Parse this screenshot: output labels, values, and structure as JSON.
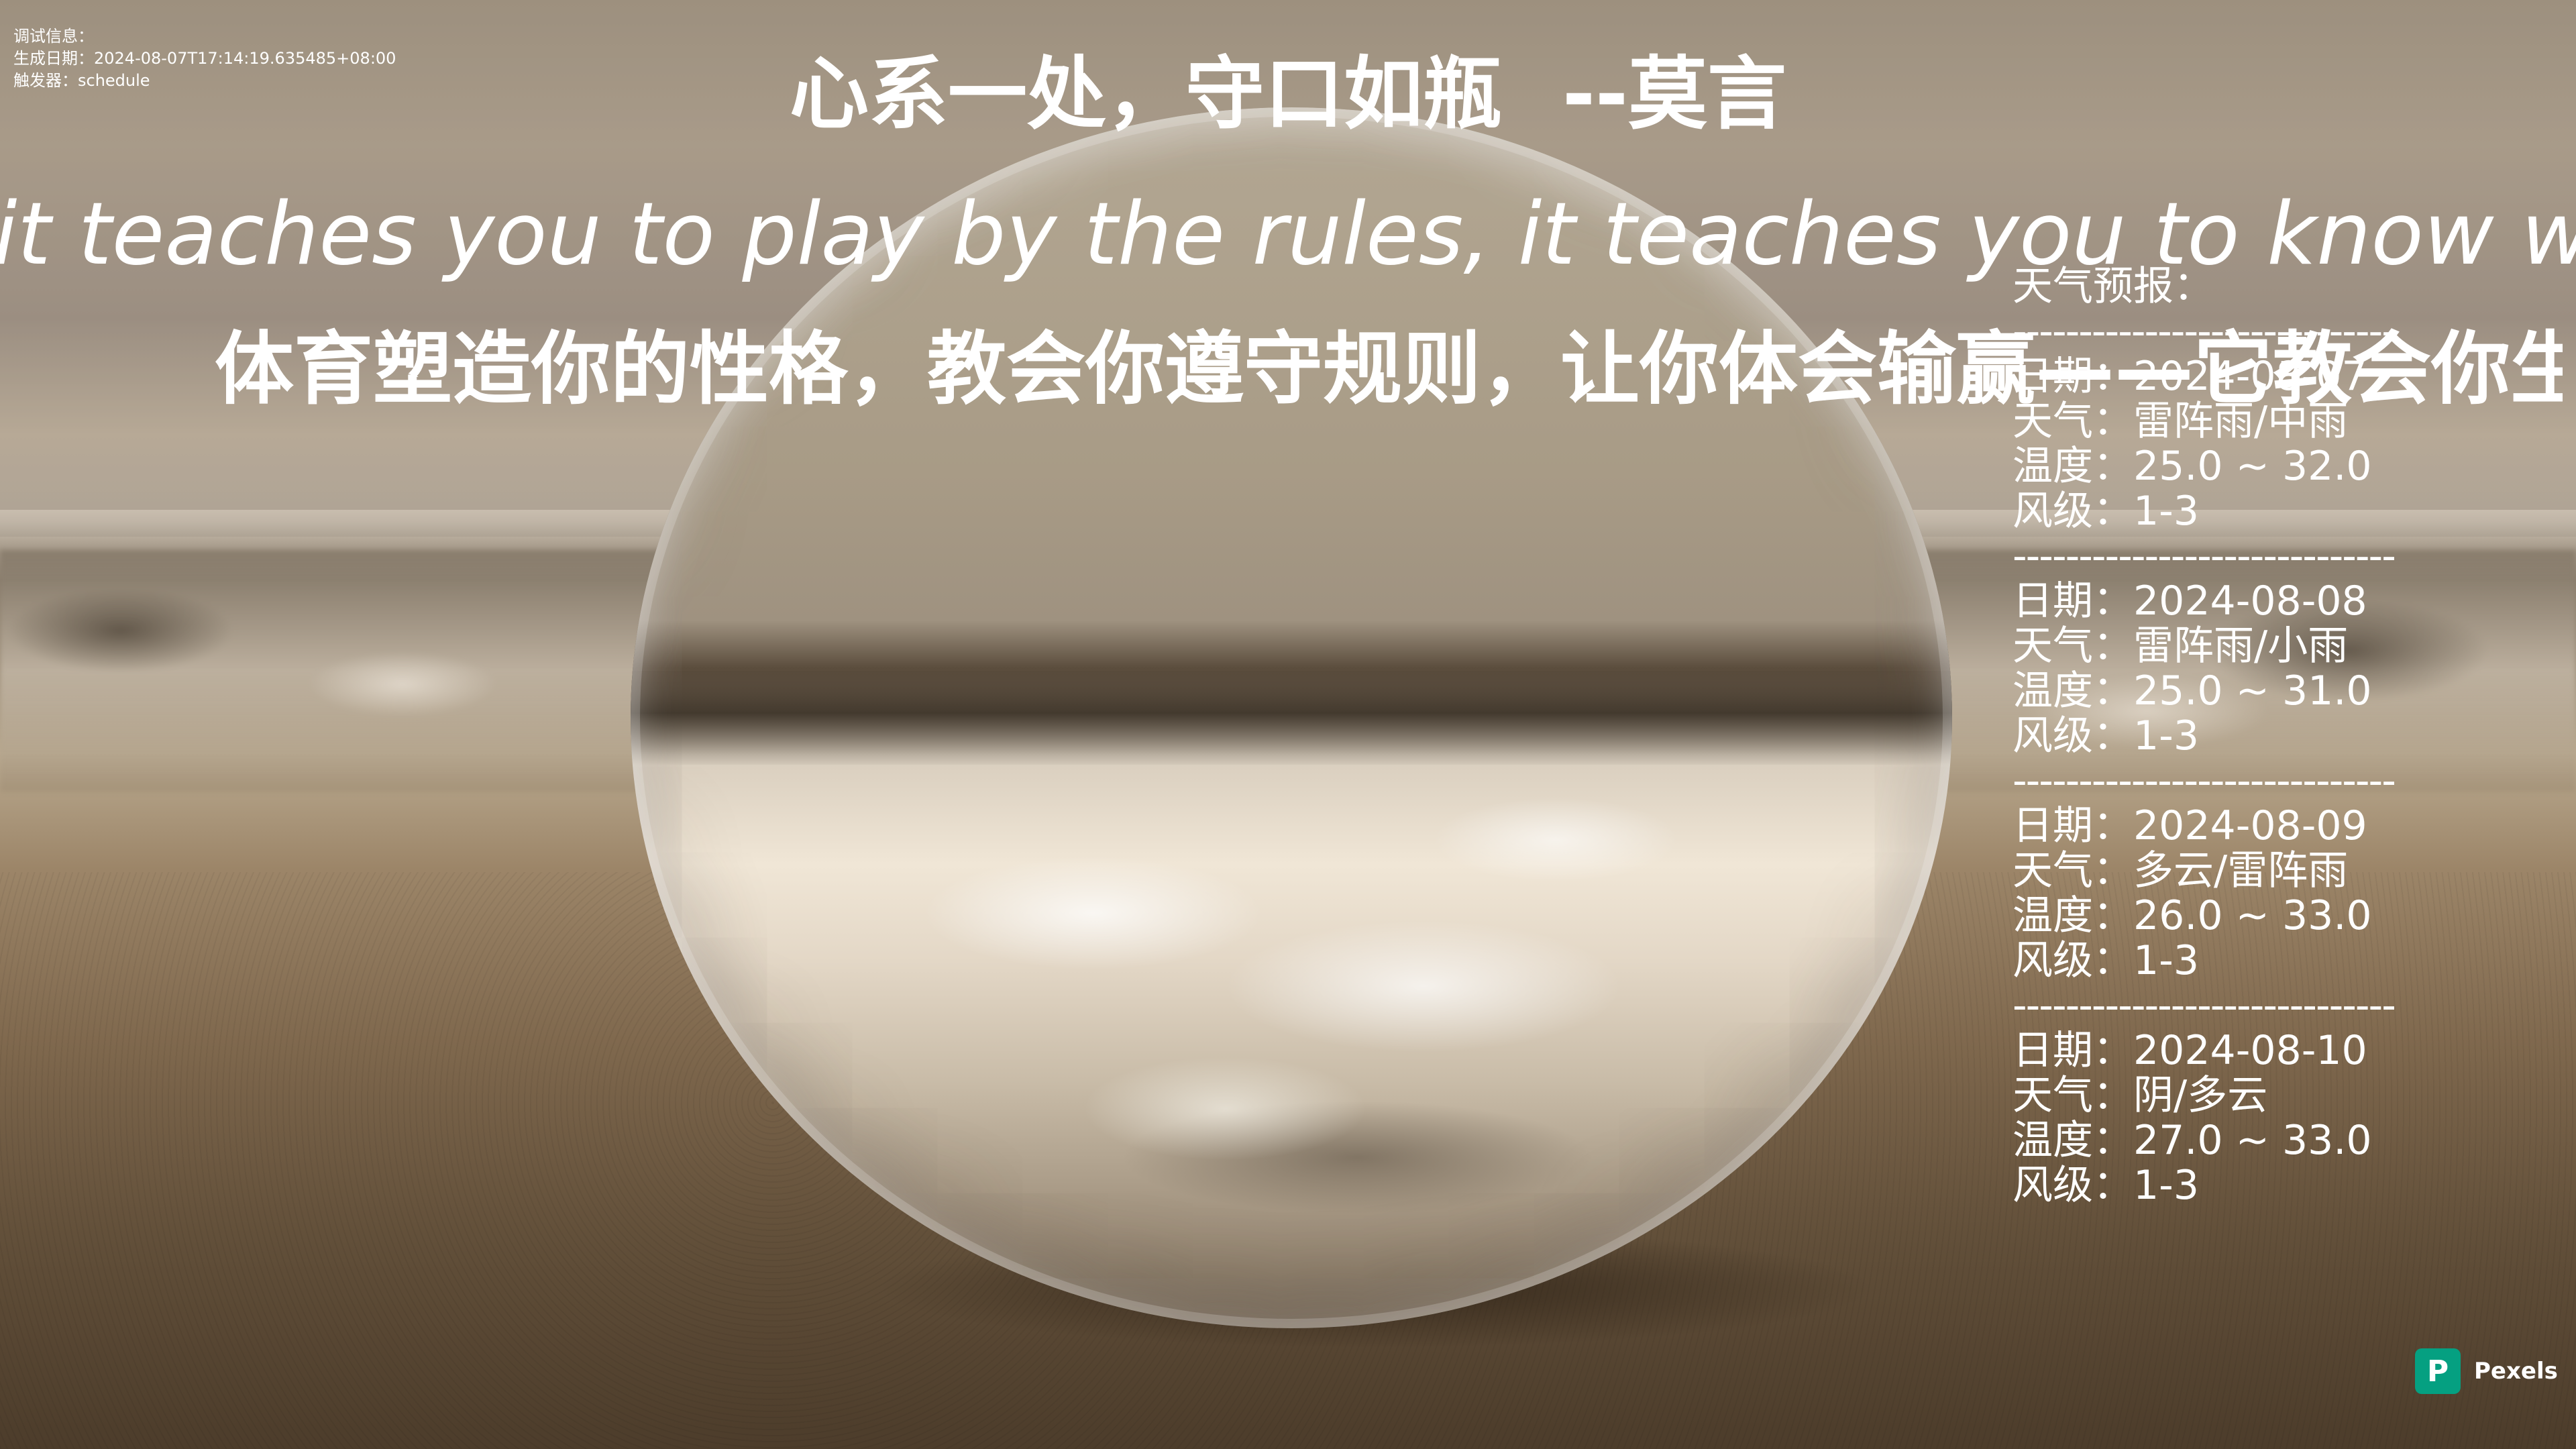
{
  "debug": {
    "label": "调试信息：",
    "generated": "生成日期：2024-08-07T17:14:19.635485+08:00",
    "trigger": "触发器：schedule"
  },
  "quote": {
    "text": "心系一处，守口如瓶",
    "author": "--莫言"
  },
  "sentence_en": "it teaches you to play by the rules, it teaches you to know what it feels like to win and lo",
  "sentence_zh": "体育塑造你的性格，教会你遵守规则，让你体会输赢——它教会你生活。",
  "weather": {
    "heading": "天气预报：",
    "separator": "-----------------------------",
    "days": [
      {
        "date": "日期：2024-08-07",
        "cond": "天气：雷阵雨/中雨",
        "temp": "温度：25.0 ~ 32.0",
        "wind": "风级：1-3"
      },
      {
        "date": "日期：2024-08-08",
        "cond": "天气：雷阵雨/小雨",
        "temp": "温度：25.0 ~ 31.0",
        "wind": "风级：1-3"
      },
      {
        "date": "日期：2024-08-09",
        "cond": "天气：多云/雷阵雨",
        "temp": "温度：26.0 ~ 33.0",
        "wind": "风级：1-3"
      },
      {
        "date": "日期：2024-08-10",
        "cond": "天气：阴/多云",
        "temp": "温度：27.0 ~ 33.0",
        "wind": "风级：1-3"
      }
    ]
  },
  "watermark": {
    "logo_letter": "P",
    "name": "Pexels",
    "color": "#05a081"
  }
}
